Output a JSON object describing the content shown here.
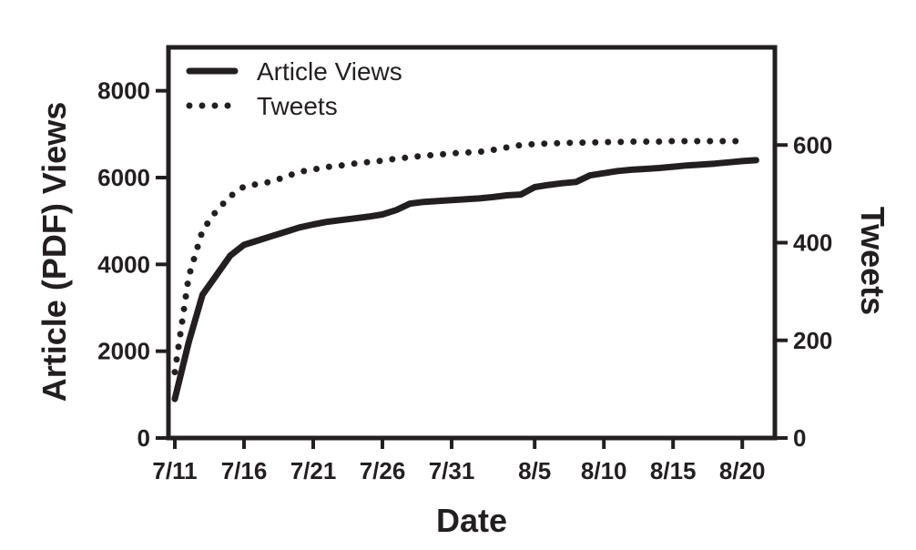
{
  "chart_data": {
    "type": "line",
    "xlabel": "Date",
    "ylabel_left": "Article (PDF) Views",
    "ylabel_right": "Tweets",
    "x_ticks": [
      "7/11",
      "7/16",
      "7/21",
      "7/26",
      "7/31",
      "8/5",
      "8/10",
      "8/15",
      "8/20"
    ],
    "ylim_left": [
      0,
      9000
    ],
    "yticks_left": [
      "0",
      "2000",
      "4000",
      "6000",
      "8000"
    ],
    "ylim_right": [
      0,
      800
    ],
    "yticks_right": [
      "0",
      "200",
      "400",
      "600"
    ],
    "grid": false,
    "legend_position": "top-left",
    "series": [
      {
        "name": "Article Views",
        "axis": "left",
        "style": "solid",
        "color": "#231f20",
        "x": [
          "7/11",
          "7/12",
          "7/13",
          "7/14",
          "7/15",
          "7/16",
          "7/17",
          "7/18",
          "7/19",
          "7/20",
          "7/21",
          "7/22",
          "7/23",
          "7/24",
          "7/25",
          "7/26",
          "7/27",
          "7/28",
          "7/29",
          "7/30",
          "7/31",
          "8/1",
          "8/2",
          "8/3",
          "8/4",
          "8/5",
          "8/6",
          "8/7",
          "8/8",
          "8/9",
          "8/10",
          "8/11",
          "8/12",
          "8/13",
          "8/14",
          "8/15",
          "8/16",
          "8/17",
          "8/18",
          "8/19",
          "8/20",
          "8/21"
        ],
        "values": [
          900,
          2200,
          3300,
          3750,
          4200,
          4450,
          4550,
          4650,
          4750,
          4850,
          4920,
          4980,
          5020,
          5060,
          5100,
          5150,
          5250,
          5400,
          5440,
          5460,
          5480,
          5520,
          5550,
          5590,
          5610,
          5780,
          5830,
          5870,
          5900,
          6050,
          6100,
          6150,
          6180,
          6200,
          6220,
          6250,
          6280,
          6300,
          6320,
          6350,
          6380,
          6400
        ]
      },
      {
        "name": "Tweets",
        "axis": "right",
        "style": "dotted",
        "color": "#231f20",
        "x": [
          "7/11",
          "7/12",
          "7/13",
          "7/14",
          "7/15",
          "7/16",
          "7/17",
          "7/18",
          "7/19",
          "7/20",
          "7/21",
          "7/22",
          "7/23",
          "7/24",
          "7/25",
          "7/26",
          "7/27",
          "7/28",
          "7/29",
          "7/30",
          "7/31",
          "8/1",
          "8/2",
          "8/3",
          "8/4",
          "8/5",
          "8/6",
          "8/7",
          "8/8",
          "8/9",
          "8/10",
          "8/11",
          "8/12",
          "8/13",
          "8/14",
          "8/15",
          "8/16",
          "8/17",
          "8/18",
          "8/19",
          "8/20"
        ],
        "values": [
          135,
          330,
          425,
          465,
          495,
          515,
          520,
          525,
          535,
          545,
          550,
          555,
          558,
          562,
          565,
          568,
          572,
          575,
          578,
          580,
          583,
          586,
          590,
          595,
          600,
          602,
          603,
          604,
          605,
          605,
          606,
          606,
          607,
          607,
          607,
          608,
          608,
          608,
          608,
          608,
          608
        ]
      }
    ]
  }
}
